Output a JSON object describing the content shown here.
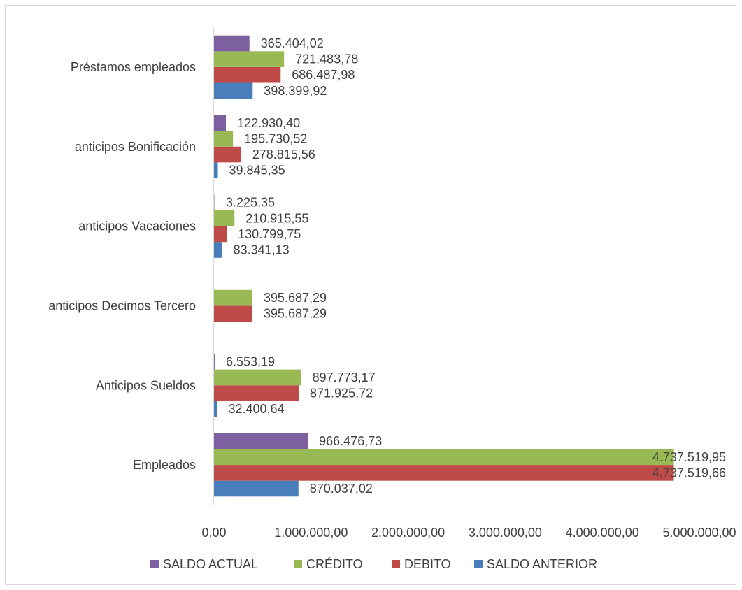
{
  "chart_data": {
    "type": "bar",
    "orientation": "horizontal",
    "categories": [
      "Empleados",
      "Anticipos Sueldos",
      "anticipos Decimos Tercero",
      "anticipos Vacaciones",
      "anticipos Bonificación",
      "Préstamos empleados"
    ],
    "series": [
      {
        "name": "SALDO ANTERIOR",
        "color": "#4a7ebb",
        "values": [
          870037.02,
          32400.64,
          null,
          83341.13,
          39845.35,
          398399.92
        ],
        "labels": [
          "870.037,02",
          "32.400,64",
          "",
          "83.341,13",
          "39.845,35",
          "398.399,92"
        ]
      },
      {
        "name": "DEBITO",
        "color": "#be4b48",
        "values": [
          4737519.66,
          871925.72,
          395687.29,
          130799.75,
          278815.56,
          686487.98
        ],
        "labels": [
          "4.737.519,66",
          "871.925,72",
          "395.687,29",
          "130.799,75",
          "278.815,56",
          "686.487,98"
        ]
      },
      {
        "name": "CRÉDITO",
        "color": "#98b954",
        "values": [
          4737519.95,
          897773.17,
          395687.29,
          210915.55,
          195730.52,
          721483.78
        ],
        "labels": [
          "4.737.519,95",
          "897.773,17",
          "395.687,29",
          "210.915,55",
          "195.730,52",
          "721.483,78"
        ]
      },
      {
        "name": "SALDO ACTUAL",
        "color": "#7d60a0",
        "values": [
          966476.73,
          6553.19,
          null,
          3225.35,
          122930.4,
          365404.02
        ],
        "labels": [
          "966.476,73",
          "6.553,19",
          "",
          "3.225,35",
          "122.930,40",
          "365.404,02"
        ]
      }
    ],
    "xlim": [
      0,
      5000000
    ],
    "x_ticks": [
      0,
      1000000,
      2000000,
      3000000,
      4000000,
      5000000
    ],
    "x_tick_labels": [
      "0,00",
      "1.000.000,00",
      "2.000.000,00",
      "3.000.000,00",
      "4.000.000,00",
      "5.000.000,00"
    ],
    "legend": {
      "position": "bottom",
      "order": [
        "SALDO ACTUAL",
        "CRÉDITO",
        "DEBITO",
        "SALDO ANTERIOR"
      ]
    },
    "grid": false
  }
}
